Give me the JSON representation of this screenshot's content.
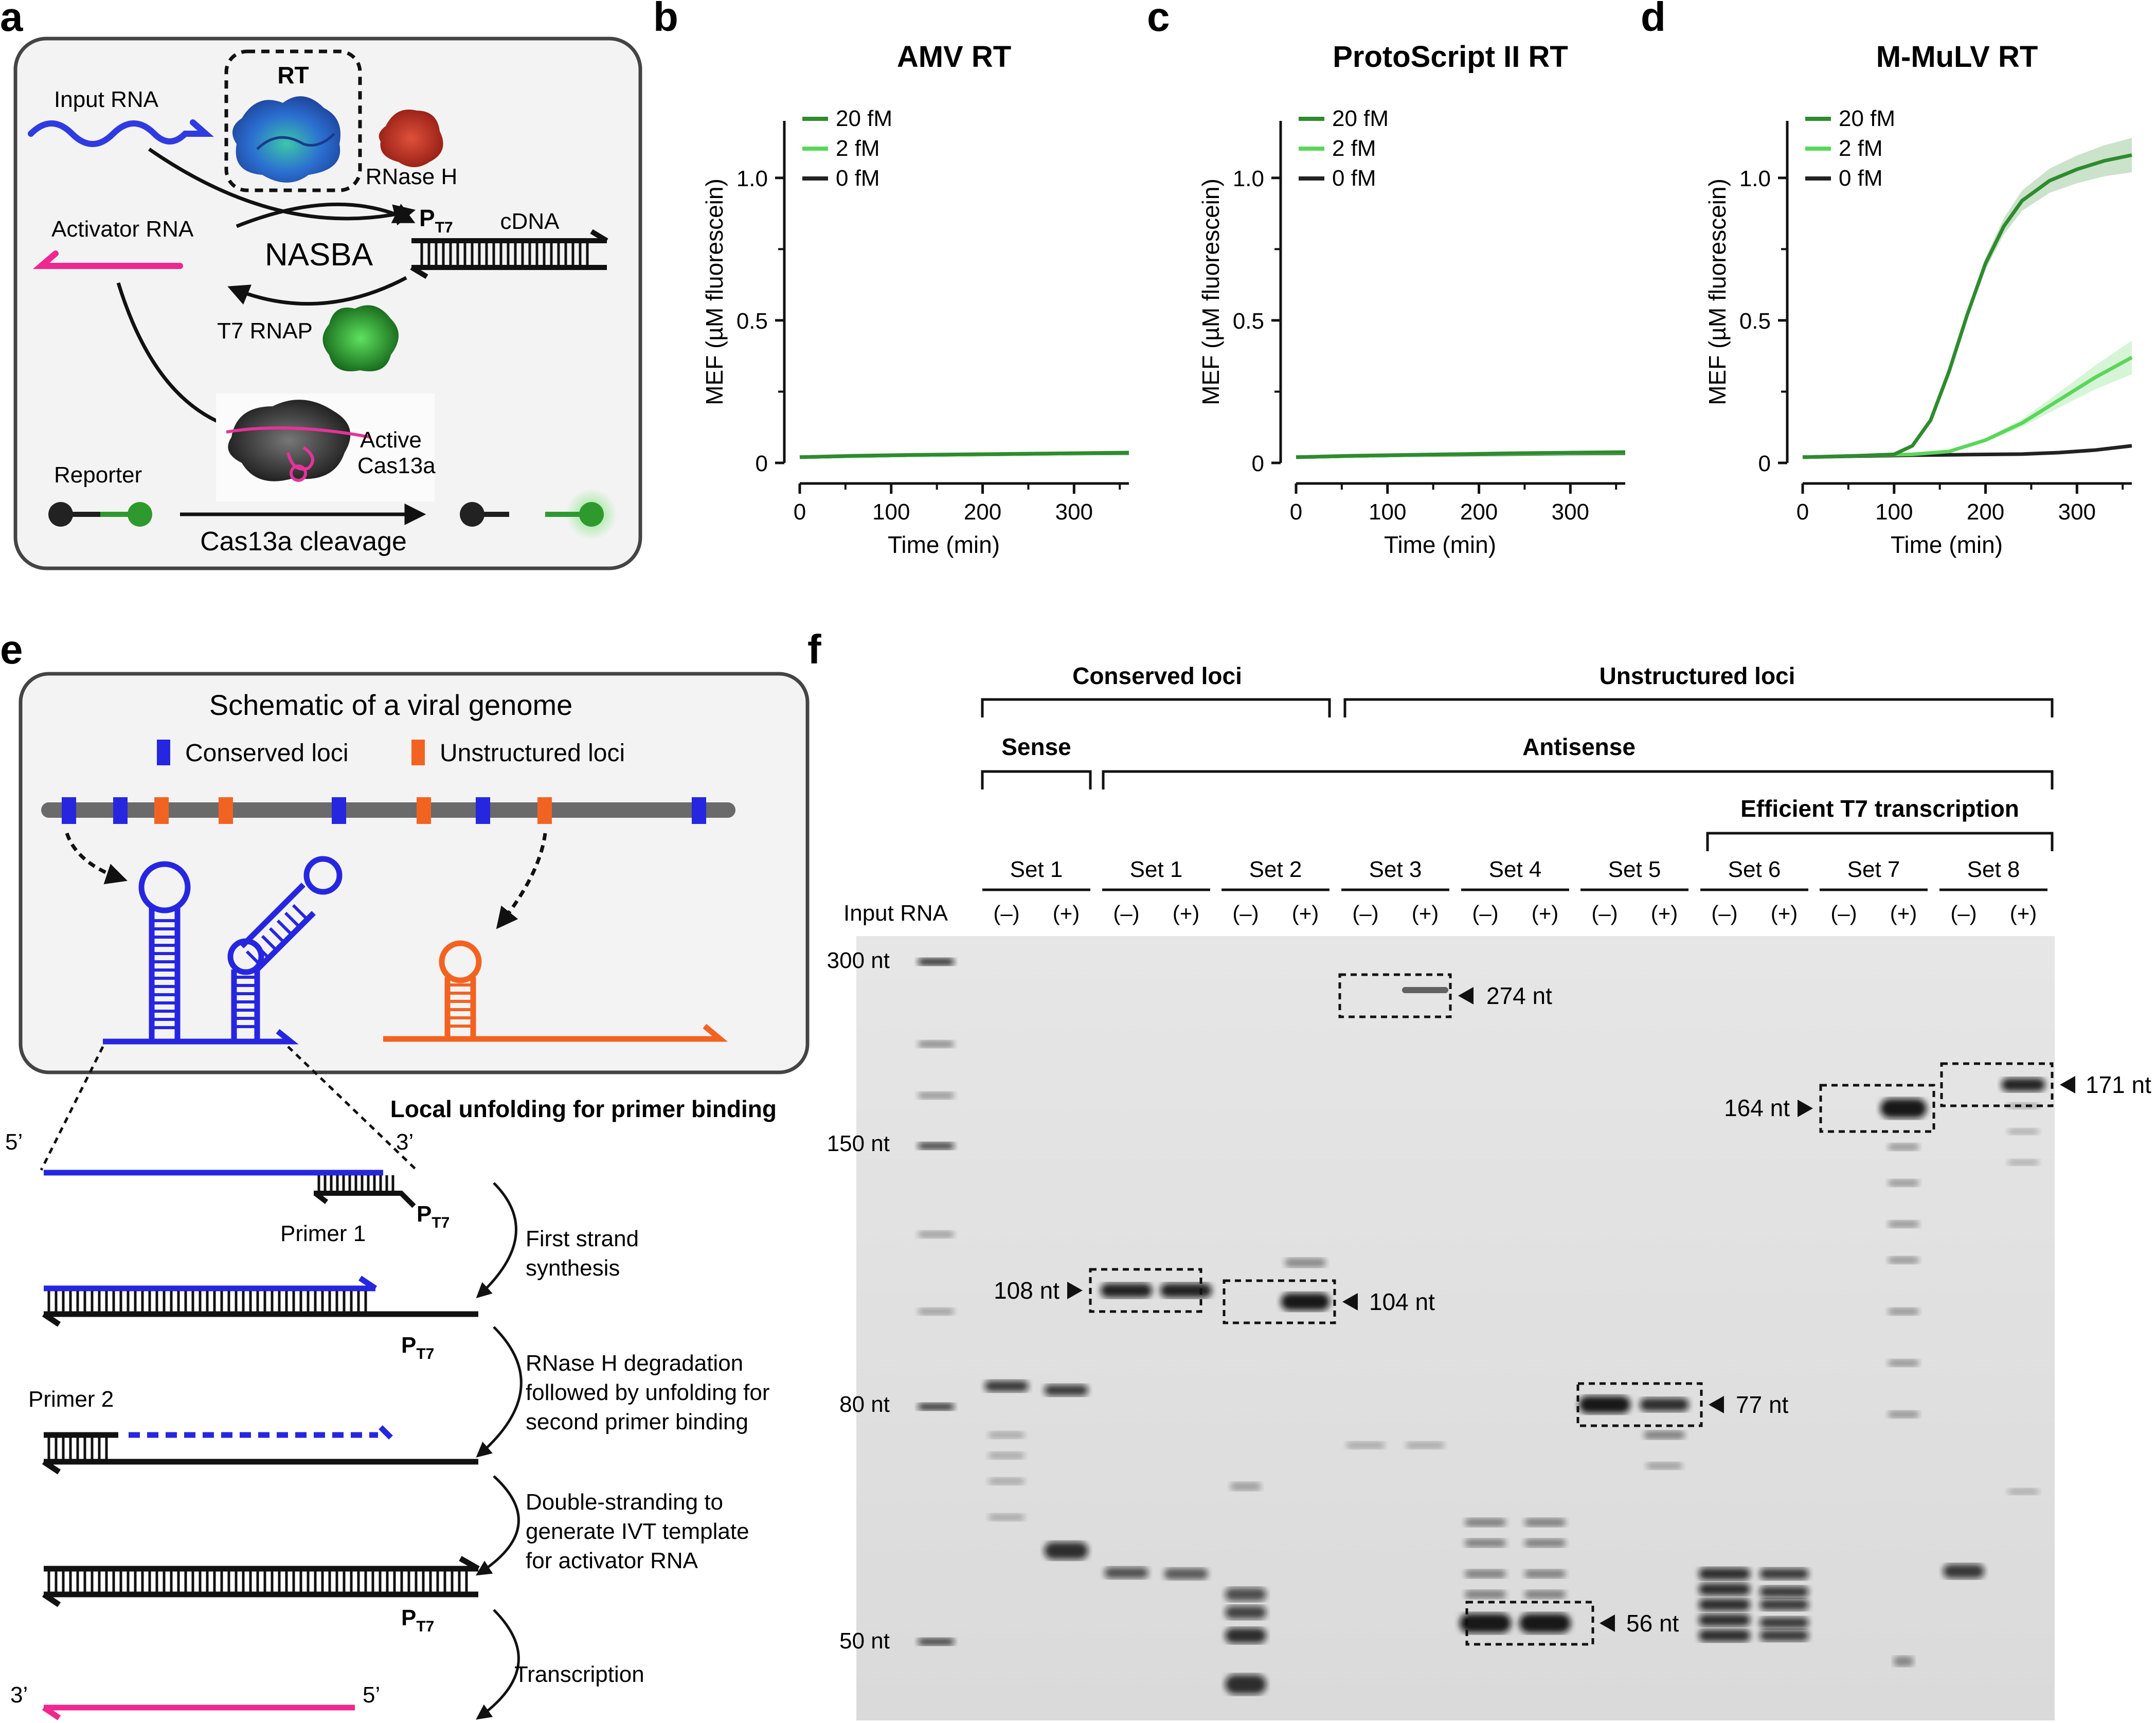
{
  "panel_letters": [
    "a",
    "b",
    "c",
    "d",
    "e",
    "f"
  ],
  "panel_a": {
    "rt": "RT",
    "rnase_h": "RNase H",
    "input_rna": "Input RNA",
    "activator_rna": "Activator RNA",
    "nasba": "NASBA",
    "pt7_main": "P",
    "pt7_sub": "T7",
    "cdna": "cDNA",
    "t7_rnap": "T7 RNAP",
    "active": "Active",
    "cas13a": "Cas13a",
    "reporter": "Reporter",
    "cleavage": "Cas13a cleavage"
  },
  "charts": {
    "ylabel": "MEF (µM fluorescein)",
    "xlabel": "Time (min)",
    "yticks": [
      "0",
      "0.5",
      "1.0"
    ],
    "xticks": [
      "0",
      "100",
      "200",
      "300"
    ],
    "legend": [
      "20 fM",
      "2 fM",
      "0 fM"
    ]
  },
  "chart_data": [
    {
      "type": "line",
      "title": "AMV RT",
      "xlabel": "Time (min)",
      "ylabel": "MEF (µM fluorescein)",
      "xlim": [
        0,
        360
      ],
      "ylim": [
        0,
        1.2
      ],
      "series": [
        {
          "name": "20 fM",
          "color": "#2e8b2e",
          "x": [
            0,
            60,
            120,
            180,
            240,
            300,
            360
          ],
          "y": [
            0.02,
            0.025,
            0.028,
            0.03,
            0.032,
            0.034,
            0.036
          ]
        },
        {
          "name": "2 fM",
          "color": "#5ad65a",
          "x": [
            0,
            60,
            120,
            180,
            240,
            300,
            360
          ],
          "y": [
            0.02,
            0.024,
            0.027,
            0.029,
            0.031,
            0.033,
            0.035
          ]
        },
        {
          "name": "0 fM",
          "color": "#222222",
          "x": [
            0,
            60,
            120,
            180,
            240,
            300,
            360
          ],
          "y": [
            0.02,
            0.024,
            0.027,
            0.029,
            0.031,
            0.033,
            0.034
          ]
        }
      ]
    },
    {
      "type": "line",
      "title": "ProtoScript II RT",
      "xlabel": "Time (min)",
      "ylabel": "MEF (µM fluorescein)",
      "xlim": [
        0,
        360
      ],
      "ylim": [
        0,
        1.2
      ],
      "series": [
        {
          "name": "20 fM",
          "color": "#2e8b2e",
          "x": [
            0,
            60,
            120,
            180,
            240,
            300,
            360
          ],
          "y": [
            0.02,
            0.025,
            0.028,
            0.031,
            0.034,
            0.036,
            0.038
          ]
        },
        {
          "name": "2 fM",
          "color": "#5ad65a",
          "x": [
            0,
            60,
            120,
            180,
            240,
            300,
            360
          ],
          "y": [
            0.02,
            0.024,
            0.027,
            0.03,
            0.032,
            0.034,
            0.036
          ]
        },
        {
          "name": "0 fM",
          "color": "#222222",
          "x": [
            0,
            60,
            120,
            180,
            240,
            300,
            360
          ],
          "y": [
            0.02,
            0.024,
            0.027,
            0.029,
            0.031,
            0.033,
            0.034
          ]
        }
      ]
    },
    {
      "type": "line",
      "title": "M-MuLV RT",
      "xlabel": "Time (min)",
      "ylabel": "MEF (µM fluorescein)",
      "xlim": [
        0,
        360
      ],
      "ylim": [
        0,
        1.2
      ],
      "series": [
        {
          "name": "20 fM",
          "color": "#2e8b2e",
          "x": [
            0,
            60,
            100,
            120,
            140,
            160,
            180,
            200,
            220,
            240,
            270,
            300,
            330,
            360
          ],
          "y": [
            0.02,
            0.025,
            0.03,
            0.06,
            0.15,
            0.32,
            0.52,
            0.7,
            0.83,
            0.92,
            0.99,
            1.03,
            1.06,
            1.08
          ]
        },
        {
          "name": "2 fM",
          "color": "#5ad65a",
          "x": [
            0,
            60,
            120,
            160,
            200,
            240,
            280,
            320,
            360
          ],
          "y": [
            0.02,
            0.025,
            0.03,
            0.04,
            0.08,
            0.14,
            0.22,
            0.3,
            0.37
          ]
        },
        {
          "name": "0 fM",
          "color": "#222222",
          "x": [
            0,
            60,
            120,
            180,
            240,
            280,
            320,
            360
          ],
          "y": [
            0.02,
            0.024,
            0.027,
            0.029,
            0.031,
            0.036,
            0.045,
            0.06
          ]
        }
      ]
    }
  ],
  "panel_e": {
    "title": "Schematic of a viral genome",
    "conserved": "Conserved loci",
    "unstructured": "Unstructured loci",
    "local_unfolding": "Local unfolding for primer binding",
    "five_prime": "5’",
    "three_prime": "3’",
    "primer1": "Primer 1",
    "primer2": "Primer 2",
    "pt7_main": "P",
    "pt7_sub": "T7",
    "step1_l1": "First strand",
    "step1_l2": "synthesis",
    "step2_l1": "RNase H degradation",
    "step2_l2": "followed by unfolding for",
    "step2_l3": "second primer binding",
    "step3_l1": "Double-stranding to",
    "step3_l2": "generate IVT template",
    "step3_l3": "for activator RNA",
    "step4": "Transcription",
    "bottom_3": "3’",
    "bottom_5": "5’"
  },
  "panel_f": {
    "conserved": "Conserved loci",
    "unstructured": "Unstructured loci",
    "sense": "Sense",
    "antisense": "Antisense",
    "efficient": "Efficient T7 transcription",
    "sets": [
      "Set 1",
      "Set 1",
      "Set 2",
      "Set 3",
      "Set 4",
      "Set 5",
      "Set 6",
      "Set 7",
      "Set 8"
    ],
    "input_rna": "Input RNA",
    "minus": "(–)",
    "plus": "(+)",
    "ladder": [
      "300 nt",
      "150 nt",
      "80 nt",
      "50 nt"
    ],
    "bands": [
      "274 nt",
      "108 nt",
      "104 nt",
      "77 nt",
      "56 nt",
      "164 nt",
      "171 nt"
    ]
  }
}
